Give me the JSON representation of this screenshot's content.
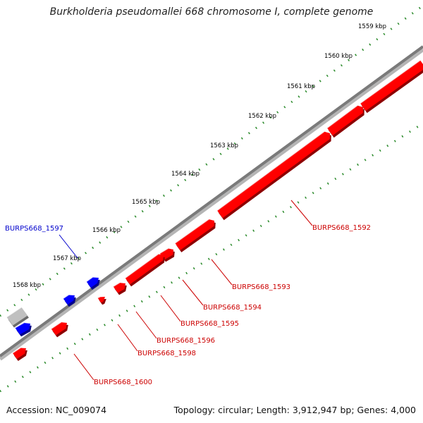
{
  "title": "Burkholderia pseudomallei 668 chromosome I, complete genome",
  "footer": {
    "accession": "Accession: NC_009074",
    "summary": "Topology: circular; Length: 3,912,947 bp; Genes: 4,000"
  },
  "colors": {
    "backbone": "#808080",
    "forward_gene": "#0000ff",
    "reverse_gene": "#ff0000",
    "other_feature": "#c0c0c0",
    "ruler_dots": "#2a8a2a",
    "label_forward": "#0000cc",
    "label_reverse": "#cc0000"
  },
  "ruler": {
    "ticks": [
      {
        "kbp": 1559,
        "label": "1559 kbp"
      },
      {
        "kbp": 1560,
        "label": "1560 kbp"
      },
      {
        "kbp": 1561,
        "label": "1561 kbp"
      },
      {
        "kbp": 1562,
        "label": "1562 kbp"
      },
      {
        "kbp": 1563,
        "label": "1563 kbp"
      },
      {
        "kbp": 1564,
        "label": "1564 kbp"
      },
      {
        "kbp": 1565,
        "label": "1565 kbp"
      },
      {
        "kbp": 1566,
        "label": "1566 kbp"
      },
      {
        "kbp": 1567,
        "label": "1567 kbp"
      },
      {
        "kbp": 1568,
        "label": "1568 kbp"
      }
    ]
  },
  "gene_labels": [
    {
      "name": "BURPS668_1597",
      "strand": "forward"
    },
    {
      "name": "BURPS668_1592",
      "strand": "reverse"
    },
    {
      "name": "BURPS668_1593",
      "strand": "reverse"
    },
    {
      "name": "BURPS668_1594",
      "strand": "reverse"
    },
    {
      "name": "BURPS668_1595",
      "strand": "reverse"
    },
    {
      "name": "BURPS668_1596",
      "strand": "reverse"
    },
    {
      "name": "BURPS668_1598",
      "strand": "reverse"
    },
    {
      "name": "BURPS668_1600",
      "strand": "reverse"
    }
  ]
}
